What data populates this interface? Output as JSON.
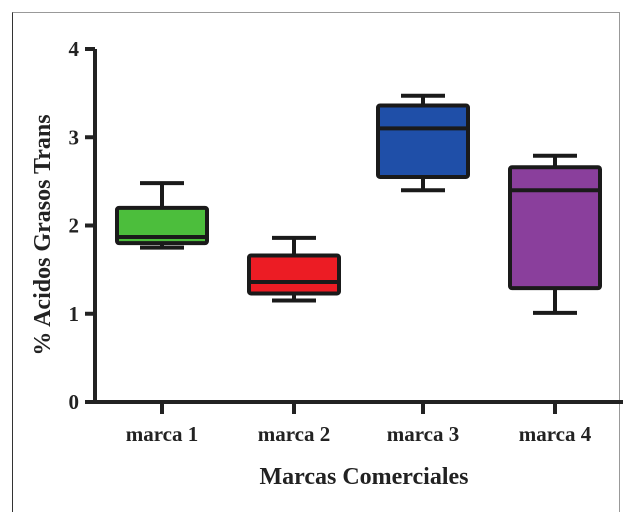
{
  "chart_data": {
    "type": "box",
    "xlabel": "Marcas Comerciales",
    "ylabel": "% Acidos Grasos Trans",
    "ylim": [
      0,
      4
    ],
    "yticks": [
      "0",
      "1",
      "2",
      "3",
      "4"
    ],
    "categories": [
      "marca 1",
      "marca 2",
      "marca 3",
      "marca 4"
    ],
    "boxes": [
      {
        "category": "marca 1",
        "min": 1.75,
        "q1": 1.8,
        "median": 1.87,
        "q3": 2.2,
        "max": 2.48,
        "color": "#4cbe3c"
      },
      {
        "category": "marca 2",
        "min": 1.15,
        "q1": 1.23,
        "median": 1.36,
        "q3": 1.66,
        "max": 1.86,
        "color": "#ec1c24"
      },
      {
        "category": "marca 3",
        "min": 2.4,
        "q1": 2.55,
        "median": 3.1,
        "q3": 3.36,
        "max": 3.47,
        "color": "#1f4fa8"
      },
      {
        "category": "marca 4",
        "min": 1.01,
        "q1": 1.29,
        "median": 2.4,
        "q3": 2.66,
        "max": 2.79,
        "color": "#8a3f9c"
      }
    ]
  }
}
